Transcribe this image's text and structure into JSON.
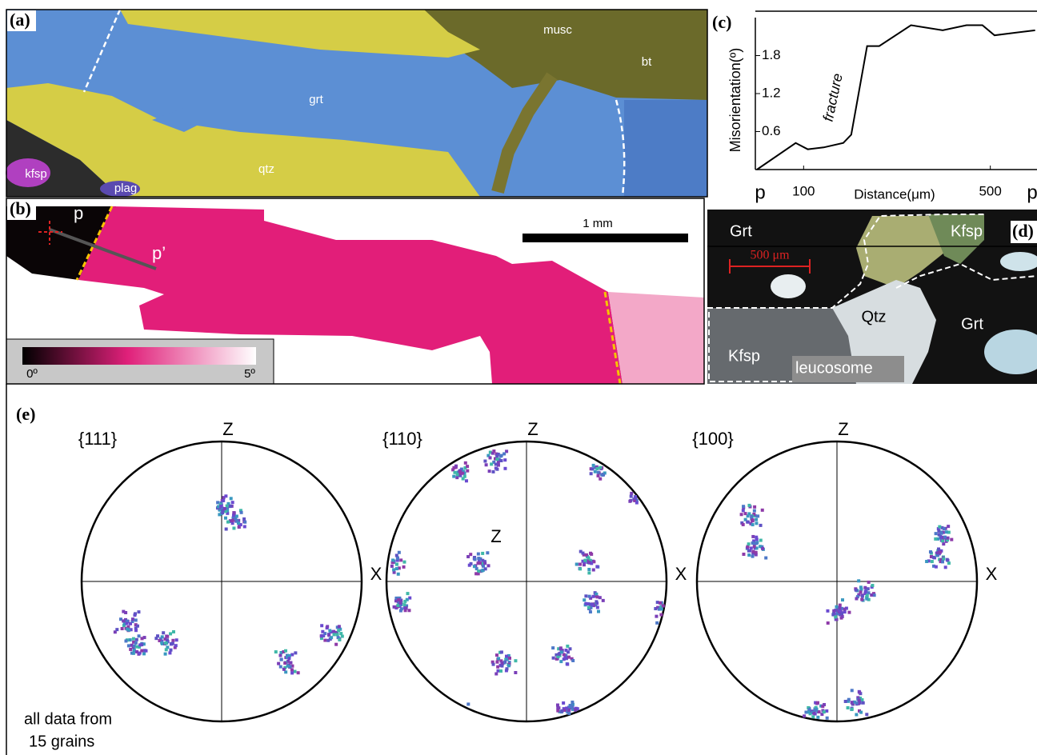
{
  "panel_a": {
    "label": "(a)",
    "phases": [
      "musc",
      "bt",
      "grt",
      "qtz",
      "kfsp",
      "plag"
    ]
  },
  "panel_b": {
    "label": "(b)",
    "profile_start": "p",
    "profile_end": "p’",
    "scale_bar": "1 mm",
    "colorbar_min": "0º",
    "colorbar_max": "5º"
  },
  "chart_data": {
    "type": "line",
    "panel_label": "(c)",
    "x_label": "Distance(μm)",
    "y_label": "Misorientation(º)",
    "annotation": "fracture",
    "start_label": "p",
    "end_label": "p",
    "x": [
      0,
      83,
      109,
      143,
      185,
      202,
      236,
      262,
      330,
      398,
      449,
      483,
      509,
      596
    ],
    "values": [
      0,
      0.42,
      0.32,
      0.35,
      0.42,
      0.55,
      1.95,
      1.95,
      2.28,
      2.2,
      2.28,
      2.28,
      2.12,
      2.2
    ],
    "color": "#000000",
    "xlim": [
      0,
      600
    ],
    "ylim": [
      0,
      2.4
    ],
    "xticks": [
      100,
      500
    ],
    "yticks": [
      0.6,
      1.2,
      1.8
    ]
  },
  "panel_d": {
    "label": "(d)",
    "scale_bar": "500 μm",
    "phases": [
      "Grt",
      "Kfsp",
      "Qtz",
      "Grt",
      "Kfsp",
      "leucosome"
    ]
  },
  "panel_e": {
    "label": "(e)",
    "pole_figures": [
      {
        "title": "{111}",
        "top_axis": "Z",
        "right_axis": "X"
      },
      {
        "title": "{110}",
        "top_axis": "Z",
        "center_axis": "Z",
        "right_axis": "X"
      },
      {
        "title": "{100}",
        "top_axis": "Z",
        "right_axis": "X"
      }
    ],
    "note": [
      "all data from",
      "15 grains"
    ]
  }
}
